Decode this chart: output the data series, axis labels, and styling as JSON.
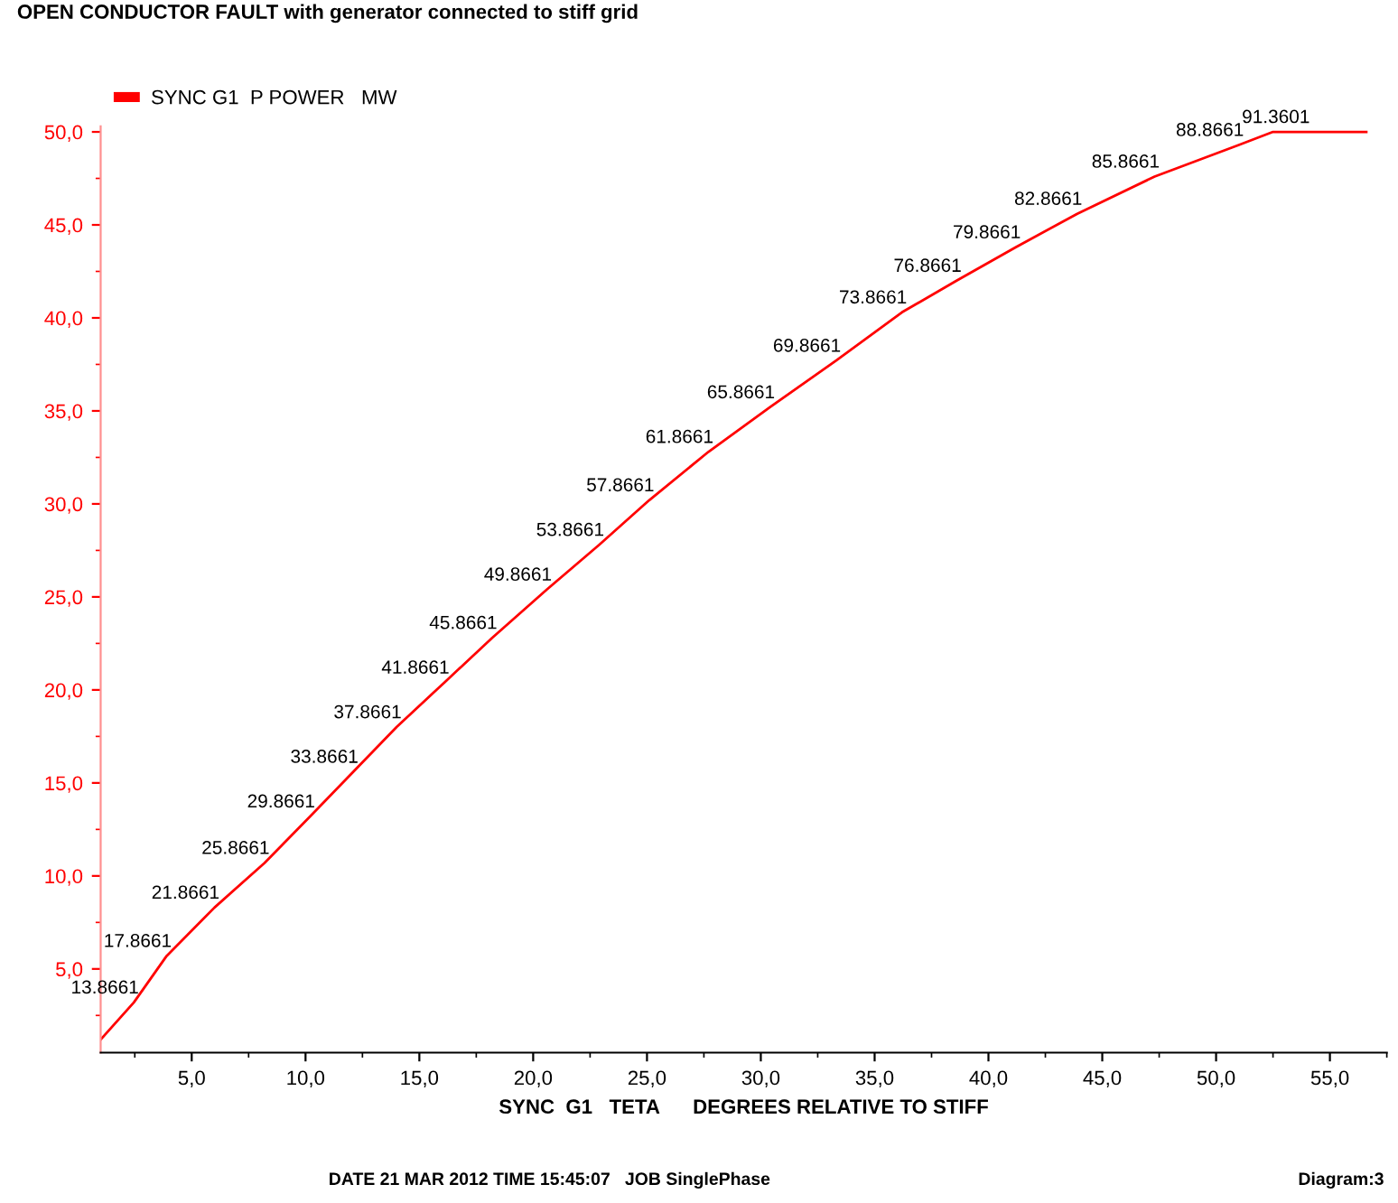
{
  "chart_data": {
    "type": "line",
    "title": "OPEN CONDUCTOR FAULT with generator connected to stiff grid",
    "xlabel": "SYNC  G1   TETA      DEGREES RELATIVE TO STIFF",
    "x": [
      1.0,
      2.46,
      3.9,
      6.0,
      8.2,
      10.2,
      12.1,
      14.0,
      16.1,
      18.2,
      20.6,
      22.9,
      25.1,
      27.7,
      30.4,
      33.3,
      36.2,
      38.6,
      41.2,
      43.9,
      47.3,
      51.0,
      52.5,
      53.9,
      56.6
    ],
    "series": [
      {
        "name": "SYNC G1  P POWER   MW",
        "color": "#ff0000",
        "values": [
          1.2,
          3.2,
          5.7,
          8.3,
          10.7,
          13.2,
          15.6,
          18.0,
          20.4,
          22.8,
          25.4,
          27.8,
          30.2,
          32.8,
          35.2,
          37.7,
          40.3,
          42.0,
          43.8,
          45.6,
          47.6,
          49.3,
          50.0,
          50.0,
          50.0
        ]
      }
    ],
    "xlim": [
      1.0,
      57.5
    ],
    "ylim": [
      0.5,
      50.3
    ],
    "xticks": [
      {
        "value": 5,
        "label": "5,0"
      },
      {
        "value": 10,
        "label": "10,0"
      },
      {
        "value": 15,
        "label": "15,0"
      },
      {
        "value": 20,
        "label": "20,0"
      },
      {
        "value": 25,
        "label": "25,0"
      },
      {
        "value": 30,
        "label": "30,0"
      },
      {
        "value": 35,
        "label": "35,0"
      },
      {
        "value": 40,
        "label": "40,0"
      },
      {
        "value": 45,
        "label": "45,0"
      },
      {
        "value": 50,
        "label": "50,0"
      },
      {
        "value": 55,
        "label": "55,0"
      }
    ],
    "yticks": [
      {
        "value": 5,
        "label": "5,0"
      },
      {
        "value": 10,
        "label": "10,0"
      },
      {
        "value": 15,
        "label": "15,0"
      },
      {
        "value": 20,
        "label": "20,0"
      },
      {
        "value": 25,
        "label": "25,0"
      },
      {
        "value": 30,
        "label": "30,0"
      },
      {
        "value": 35,
        "label": "35,0"
      },
      {
        "value": 40,
        "label": "40,0"
      },
      {
        "value": 45,
        "label": "45,0"
      },
      {
        "value": 50,
        "label": "50,0"
      }
    ],
    "legend": "top left",
    "grid": false,
    "marker": "none",
    "line_style": "solid",
    "annotations": [
      {
        "text": "13.8661",
        "x": 2.46,
        "y": 3.2
      },
      {
        "text": "17.8661",
        "x": 3.9,
        "y": 5.7
      },
      {
        "text": "21.8661",
        "x": 6.0,
        "y": 8.3
      },
      {
        "text": "25.8661",
        "x": 8.2,
        "y": 10.7
      },
      {
        "text": "29.8661",
        "x": 10.2,
        "y": 13.2
      },
      {
        "text": "33.8661",
        "x": 12.1,
        "y": 15.6
      },
      {
        "text": "37.8661",
        "x": 14.0,
        "y": 18.0
      },
      {
        "text": "41.8661",
        "x": 16.1,
        "y": 20.4
      },
      {
        "text": "45.8661",
        "x": 18.2,
        "y": 22.8
      },
      {
        "text": "49.8661",
        "x": 20.6,
        "y": 25.4
      },
      {
        "text": "53.8661",
        "x": 22.9,
        "y": 27.8
      },
      {
        "text": "57.8661",
        "x": 25.1,
        "y": 30.2
      },
      {
        "text": "61.8661",
        "x": 27.7,
        "y": 32.8
      },
      {
        "text": "65.8661",
        "x": 30.4,
        "y": 35.2
      },
      {
        "text": "69.8661",
        "x": 33.3,
        "y": 37.7
      },
      {
        "text": "73.8661",
        "x": 36.2,
        "y": 40.3
      },
      {
        "text": "76.8661",
        "x": 38.6,
        "y": 42.0
      },
      {
        "text": "79.8661",
        "x": 41.2,
        "y": 43.8
      },
      {
        "text": "82.8661",
        "x": 43.9,
        "y": 45.6
      },
      {
        "text": "85.8661",
        "x": 47.3,
        "y": 47.6
      },
      {
        "text": "88.8661",
        "x": 51.0,
        "y": 49.3
      },
      {
        "text": "91.3601",
        "x": 53.9,
        "y": 50.0
      },
      "DATE 21 MAR 2012 TIME 15:45:07   JOB SinglePhase",
      "Diagram:3"
    ]
  }
}
